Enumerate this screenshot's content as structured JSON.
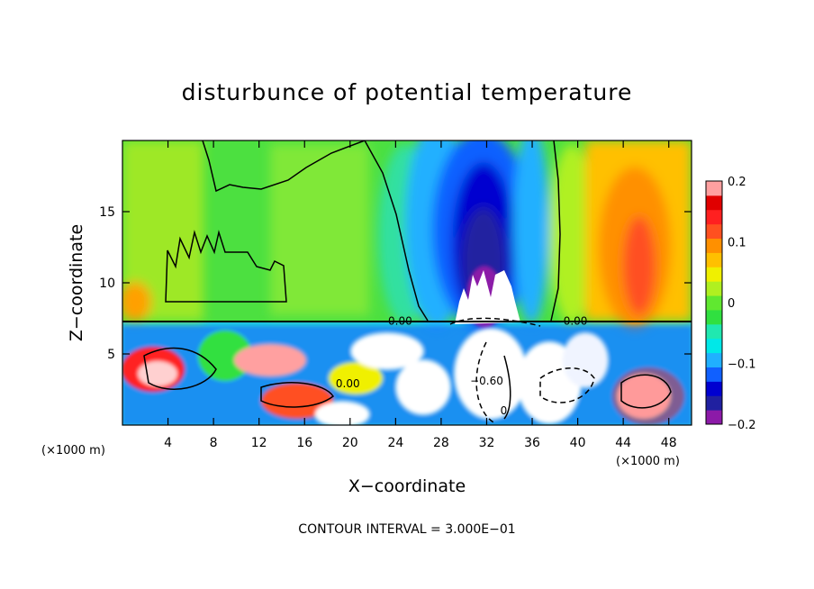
{
  "chart_data": {
    "type": "heatmap",
    "title": "disturbunce of potential temperature",
    "xlabel": "X−coordinate",
    "ylabel": "Z−coordinate",
    "x_unit": "(×1000 m)",
    "xlim": [
      0,
      50
    ],
    "ylim": [
      0,
      20
    ],
    "x_ticks": [
      4,
      8,
      12,
      16,
      20,
      24,
      28,
      32,
      36,
      40,
      44,
      48
    ],
    "y_ticks": [
      5,
      10,
      15
    ],
    "colorbar": {
      "range": [
        -0.2,
        0.2
      ],
      "ticks": [
        {
          "value": 0.2,
          "label": "0.2"
        },
        {
          "value": 0.1,
          "label": "0.1"
        },
        {
          "value": 0,
          "label": "0"
        },
        {
          "value": -0.1,
          "label": "−0.1"
        },
        {
          "value": -0.2,
          "label": "−0.2"
        }
      ],
      "colors": [
        "#8c1aa8",
        "#2020a0",
        "#0000d0",
        "#1060ff",
        "#20b0ff",
        "#00e8e8",
        "#20e8b0",
        "#30e040",
        "#60e830",
        "#b0f020",
        "#f0f000",
        "#ffc000",
        "#ff9000",
        "#ff5020",
        "#ff2020",
        "#e00000",
        "#ffa0a0"
      ]
    },
    "contour_labels": [
      {
        "text": "0.00",
        "x": 24.4,
        "y": 7.3
      },
      {
        "text": "0.00",
        "x": 39.8,
        "y": 7.3
      },
      {
        "text": "0.00",
        "x": 19.8,
        "y": 2.9
      },
      {
        "text": "−0.60",
        "x": 32.0,
        "y": 3.1
      },
      {
        "text": "0",
        "x": 33.5,
        "y": 1.0
      }
    ],
    "footer": "CONTOUR INTERVAL = 3.000E−01"
  }
}
